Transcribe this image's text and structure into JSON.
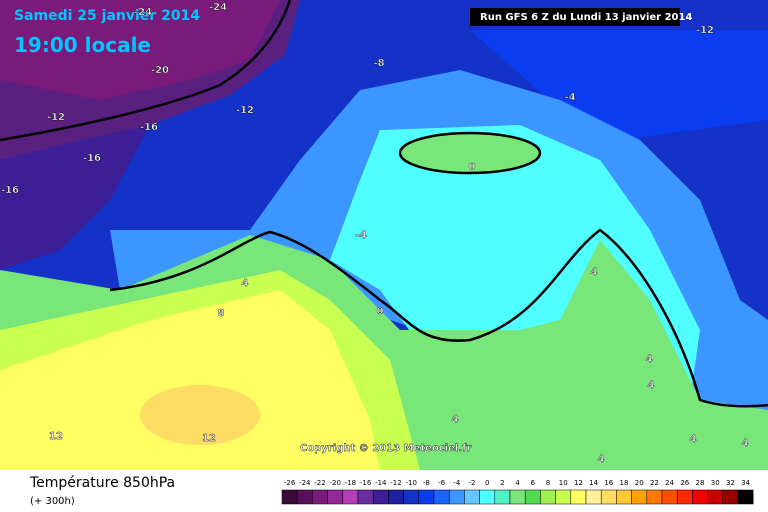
{
  "header": {
    "date": "Samedi 25 janvier 2014",
    "time": "19:00 locale",
    "run": "Run GFS 6 Z du Lundi 13 janvier 2014"
  },
  "map": {
    "contour_labels": [
      -24,
      -24,
      -20,
      -12,
      -16,
      -12,
      -8,
      -4,
      -12,
      -16,
      -16,
      -4,
      0,
      4,
      8,
      0,
      4,
      4,
      4,
      4,
      4,
      4,
      4,
      12,
      12
    ],
    "copyright": "Copyright © 2013 Meteociel.fr"
  },
  "footer": {
    "title": "Température 850hPa",
    "subtitle": "(+ 300h)"
  },
  "legend": {
    "ticks": [
      -26,
      -24,
      -22,
      -20,
      -18,
      -16,
      -14,
      -12,
      -10,
      -8,
      -6,
      -4,
      -2,
      0,
      2,
      4,
      6,
      8,
      10,
      12,
      14,
      16,
      18,
      20,
      22,
      24,
      26,
      28,
      30,
      32,
      34
    ],
    "colors": [
      "#3a0a3a",
      "#5a0f5a",
      "#7a1a7a",
      "#962896",
      "#b43cb4",
      "#6a2ca0",
      "#3c1e96",
      "#1e1ea0",
      "#1432c8",
      "#0a3cf0",
      "#1e64ff",
      "#3c96ff",
      "#64c8ff",
      "#50ffff",
      "#50f0c8",
      "#78e678",
      "#50dc50",
      "#a0f050",
      "#c8ff50",
      "#ffff64",
      "#fff096",
      "#ffdc64",
      "#ffc832",
      "#ffa000",
      "#ff7800",
      "#ff5000",
      "#ff2800",
      "#f00000",
      "#c80000",
      "#960000",
      "#000000"
    ]
  }
}
